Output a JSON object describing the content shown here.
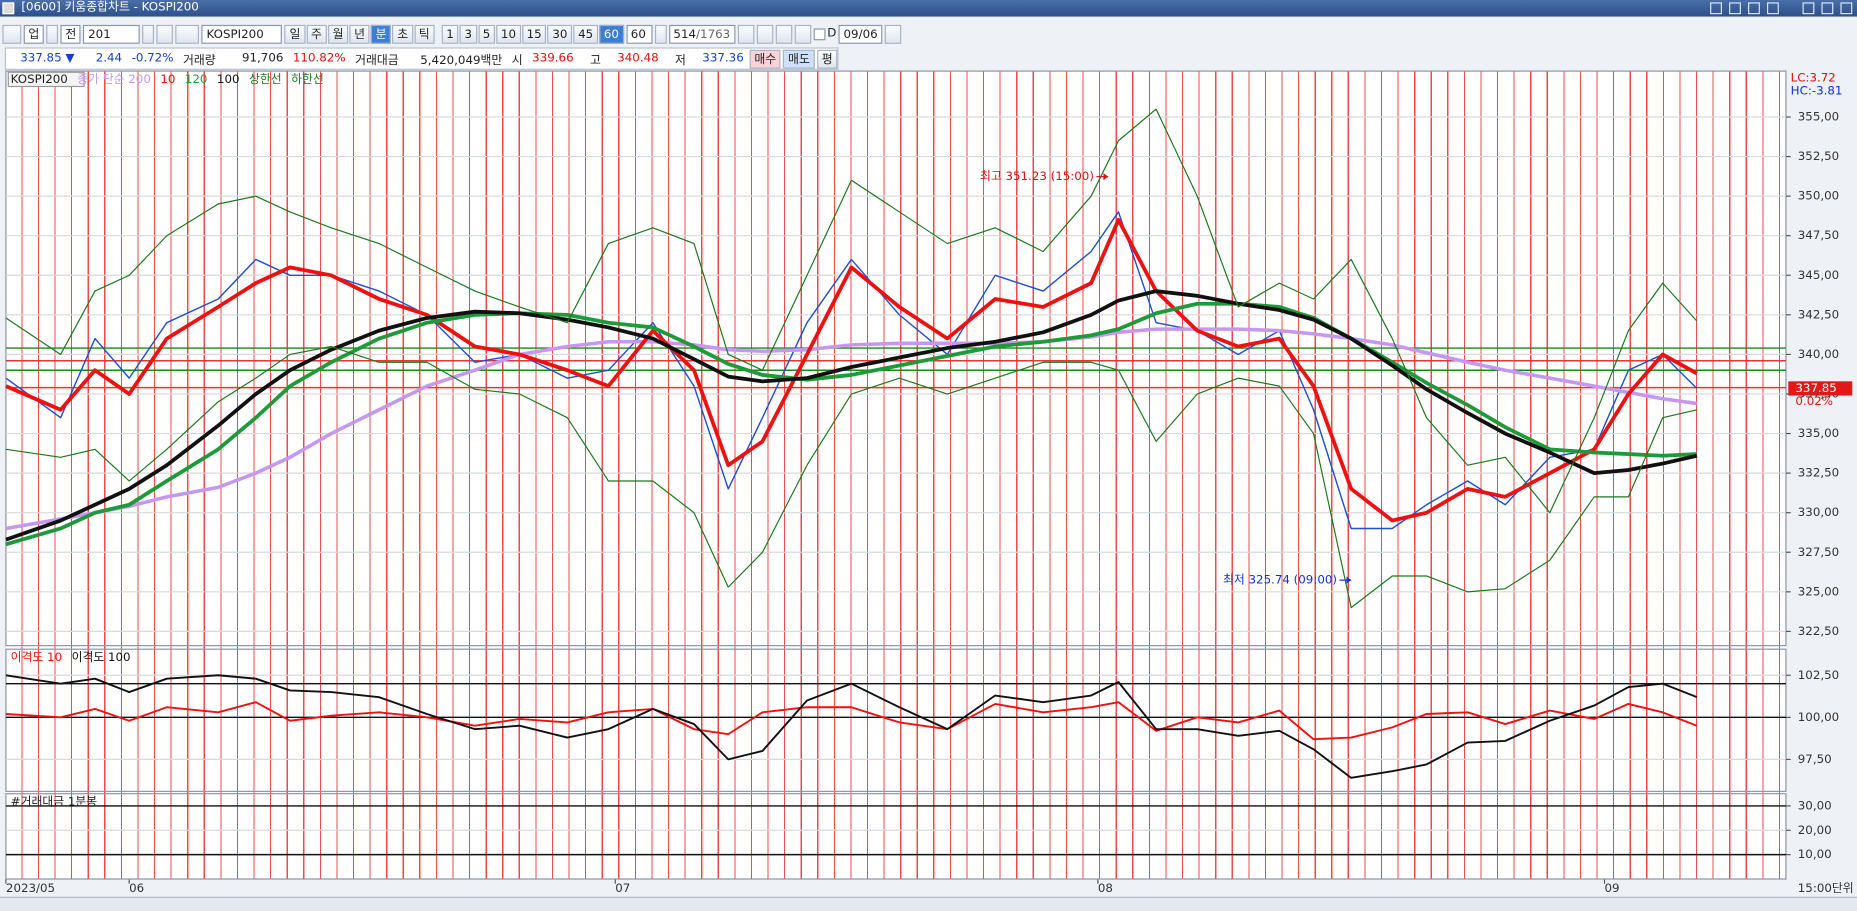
{
  "window": {
    "title": "[0600] 키움종합차트 - KOSPI200"
  },
  "toolbar": {
    "market": "업",
    "period_mode": "전",
    "code": "201",
    "name": "KOSPI200",
    "periods": [
      "일",
      "주",
      "월",
      "년",
      "분",
      "초",
      "틱"
    ],
    "intervals": [
      "1",
      "3",
      "5",
      "10",
      "15",
      "30",
      "45",
      "60"
    ],
    "interval": "60",
    "count": "514",
    "total": "/1763",
    "d": "D",
    "date": "09/06"
  },
  "quote": {
    "price": "337.85 ▼",
    "change": "2.44",
    "change_rate": "-0.72%",
    "volume_label": "거래량",
    "volume": "91,706",
    "volume_rate": "110.82%",
    "amount_label": "거래대금",
    "amount": "5,420,049백만",
    "open_label": "시",
    "open": "339.66",
    "high_label": "고",
    "high": "340.48",
    "low_label": "저",
    "low": "337.36",
    "buy": "매수",
    "sell": "매도",
    "avg": "평"
  },
  "x_unit_label": "15:00단위",
  "chart_data": [
    {
      "type": "line",
      "x": [
        0,
        16,
        26,
        36,
        47,
        62,
        73,
        83,
        95,
        109,
        123,
        137,
        150,
        164,
        176,
        189,
        201,
        211,
        221,
        234,
        247,
        261,
        275,
        289,
        303,
        317,
        325,
        336,
        348,
        360,
        372,
        382,
        393,
        405,
        415,
        427,
        438,
        451,
        464,
        474,
        484,
        494
      ],
      "xlim": [
        0,
        520
      ],
      "xticks": [
        {
          "value": 0,
          "label": "2023/05"
        },
        {
          "value": 36,
          "label": "06"
        },
        {
          "value": 178,
          "label": "07"
        },
        {
          "value": 319,
          "label": "08"
        },
        {
          "value": 467,
          "label": "09"
        }
      ],
      "ylim": [
        321.6,
        357.9
      ],
      "yticks": [
        {
          "value": 322.5,
          "label": "322,50"
        },
        {
          "value": 325,
          "label": "325,00"
        },
        {
          "value": 327.5,
          "label": "327,50"
        },
        {
          "value": 330,
          "label": "330,00"
        },
        {
          "value": 332.5,
          "label": "332,50"
        },
        {
          "value": 335,
          "label": "335,00"
        },
        {
          "value": 337.5,
          "label": "337,50"
        },
        {
          "value": 340,
          "label": "340,00"
        },
        {
          "value": 342.5,
          "label": "342,50"
        },
        {
          "value": 345,
          "label": "345,00"
        },
        {
          "value": 347.5,
          "label": "347,50"
        },
        {
          "value": 350,
          "label": "350,00"
        },
        {
          "value": 352.5,
          "label": "352,50"
        },
        {
          "value": 355,
          "label": "355,00"
        }
      ],
      "grid": true,
      "series": [
        {
          "name": "KOSPI200",
          "color": "#1f4fd6",
          "values": [
            338.5,
            336,
            341,
            338.5,
            342,
            343.5,
            346,
            345,
            345,
            344,
            342.5,
            339.5,
            340,
            338.5,
            339,
            342,
            338,
            331.5,
            336,
            342,
            346,
            342.5,
            340,
            345,
            344,
            346.5,
            349,
            342,
            341.5,
            340,
            341.5,
            336.5,
            329,
            329,
            330.5,
            332,
            330.5,
            333.5,
            334,
            339,
            340,
            337.85
          ]
        },
        {
          "name": "종가 단순 200",
          "color": "#c597f0",
          "values": [
            329,
            329.6,
            330,
            330.4,
            331,
            331.6,
            332.5,
            333.5,
            335,
            336.5,
            338,
            339,
            340,
            340.5,
            340.8,
            340.8,
            340.6,
            340.3,
            340.2,
            340.3,
            340.6,
            340.7,
            340.7,
            340.7,
            340.8,
            341.1,
            341.4,
            341.6,
            341.6,
            341.6,
            341.5,
            341.3,
            341,
            340.6,
            340.1,
            339.5,
            339,
            338.5,
            338,
            337.6,
            337.2,
            336.9
          ]
        },
        {
          "name": "10",
          "color": "#ee1111",
          "values": [
            338,
            336.5,
            339,
            337.5,
            341,
            343,
            344.5,
            345.5,
            345,
            343.5,
            342.5,
            340.5,
            340,
            339,
            338,
            341.5,
            339,
            333,
            334.5,
            340,
            345.5,
            343,
            341,
            343.5,
            343,
            344.5,
            348.5,
            344,
            341.5,
            340.5,
            341,
            338,
            331.5,
            329.5,
            330,
            331.5,
            331,
            332.5,
            334,
            337.5,
            340,
            338.8
          ]
        },
        {
          "name": "120",
          "color": "#1e9a3a",
          "values": [
            328,
            329,
            330,
            330.5,
            332,
            334,
            336,
            338,
            339.5,
            341,
            342,
            342.5,
            342.6,
            342.5,
            342,
            341.7,
            340.5,
            339.4,
            338.7,
            338.4,
            338.7,
            339.3,
            339.9,
            340.5,
            340.8,
            341.2,
            341.6,
            342.6,
            343.2,
            343.2,
            343,
            342.3,
            341,
            339.5,
            338.2,
            336.8,
            335.4,
            334,
            333.8,
            333.7,
            333.6,
            333.7
          ]
        },
        {
          "name": "100",
          "color": "#111111",
          "values": [
            328.3,
            329.5,
            330.5,
            331.5,
            333,
            335.5,
            337.5,
            339,
            340.3,
            341.5,
            342.3,
            342.7,
            342.6,
            342.2,
            341.7,
            341,
            339.7,
            338.6,
            338.3,
            338.5,
            339.2,
            339.8,
            340.4,
            340.8,
            341.4,
            342.5,
            343.4,
            344,
            343.7,
            343.2,
            342.8,
            342.2,
            341,
            339.3,
            337.8,
            336.3,
            335,
            333.8,
            332.5,
            332.7,
            333.1,
            333.6
          ]
        },
        {
          "name": "상한선",
          "color": "#1a7a1a",
          "values": [
            342.3,
            340,
            344,
            345,
            347.5,
            349.5,
            350,
            349,
            348,
            347,
            345.5,
            344,
            343,
            342,
            347,
            348,
            347,
            340,
            339,
            345,
            351,
            349,
            347,
            348,
            346.5,
            350,
            353.5,
            355.5,
            350,
            343,
            344.5,
            343.5,
            346,
            341,
            336,
            333,
            333.5,
            330,
            336,
            341.5,
            344.5,
            342.1
          ]
        },
        {
          "name": "하한선",
          "color": "#1a7a1a",
          "values": [
            334,
            333.5,
            334,
            332,
            334,
            337,
            338.5,
            340,
            340.5,
            339.5,
            339.5,
            337.8,
            337.5,
            336,
            332,
            332,
            330,
            325.3,
            327.5,
            333,
            337.5,
            338.5,
            337.5,
            338.5,
            339.5,
            339.5,
            339,
            334.5,
            337.5,
            338.5,
            338,
            335,
            324,
            326,
            326,
            325,
            325.2,
            327,
            331,
            331,
            336,
            336.5
          ]
        }
      ],
      "hlines": [
        {
          "value": 340.4,
          "color": "#1a8a1a"
        },
        {
          "value": 339.0,
          "color": "#1a8a1a"
        },
        {
          "value": 339.6,
          "color": "#ee3333"
        },
        {
          "value": 337.9,
          "color": "#ee3333"
        }
      ],
      "annotations": [
        {
          "text": "최고 351.23 (15:00)",
          "x": 322,
          "value": 351.23,
          "color": "#e01010"
        },
        {
          "text": "최저 325.74 (09:00)",
          "x": 393,
          "value": 325.74,
          "color": "#1030e0"
        }
      ],
      "last_price": 337.85,
      "last_change": "0.02%",
      "corner_labels": [
        {
          "text": "LC:3.72",
          "color": "#e01010"
        },
        {
          "text": "HC:-3.81",
          "color": "#1030e0"
        }
      ]
    },
    {
      "type": "line",
      "ylim": [
        95.6,
        104.05
      ],
      "yticks": [
        {
          "value": 97.5,
          "label": "97,50"
        },
        {
          "value": 100,
          "label": "100,00"
        },
        {
          "value": 102.5,
          "label": "102,50"
        }
      ],
      "grid": true,
      "series": [
        {
          "name": "이격도 10",
          "color": "#ee1111",
          "values": [
            100.2,
            100,
            100.5,
            99.8,
            100.6,
            100.3,
            100.9,
            99.8,
            100.1,
            100.3,
            100,
            99.5,
            99.9,
            99.7,
            100.3,
            100.5,
            99.3,
            99,
            100.3,
            100.6,
            100.6,
            99.7,
            99.3,
            100.8,
            100.3,
            100.6,
            100.9,
            99.2,
            100,
            99.7,
            100.4,
            98.7,
            98.8,
            99.4,
            100.2,
            100.3,
            99.6,
            100.4,
            99.9,
            100.8,
            100.3,
            99.5
          ]
        },
        {
          "name": "이격도 100",
          "color": "#111111",
          "values": [
            102.5,
            102,
            102.3,
            101.5,
            102.3,
            102.5,
            102.3,
            101.6,
            101.5,
            101.2,
            100.2,
            99.3,
            99.5,
            98.8,
            99.3,
            100.5,
            99.6,
            97.5,
            98,
            101,
            102,
            100.6,
            99.3,
            101.3,
            100.9,
            101.3,
            102.1,
            99.3,
            99.3,
            98.9,
            99.2,
            98.1,
            96.4,
            96.8,
            97.2,
            98.5,
            98.6,
            99.8,
            100.7,
            101.8,
            102,
            101.2
          ]
        }
      ],
      "hlines": [
        {
          "value": 102,
          "color": "#111111"
        },
        {
          "value": 100,
          "color": "#111111"
        }
      ]
    },
    {
      "type": "line",
      "title": "#거래대금 1분봉",
      "ylim": [
        0,
        35
      ],
      "yticks": [
        {
          "value": 10,
          "label": "10,00"
        },
        {
          "value": 20,
          "label": "20,00"
        },
        {
          "value": 30,
          "label": "30,00"
        }
      ],
      "grid": true,
      "hlines": [
        {
          "value": 30,
          "color": "#111111"
        },
        {
          "value": 10,
          "color": "#111111"
        }
      ]
    }
  ]
}
